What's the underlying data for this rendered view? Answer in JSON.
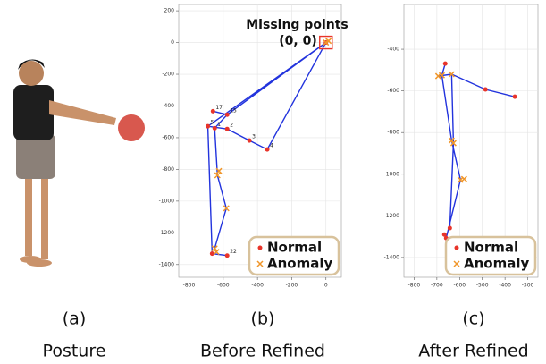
{
  "captions": [
    {
      "label": "(a)",
      "title": "Posture"
    },
    {
      "label": "(b)",
      "title": "Before Refined"
    },
    {
      "label": "(c)",
      "title": "After Refined"
    }
  ],
  "chart_data": [
    {
      "type": "scatter",
      "xlim": [
        -860,
        90
      ],
      "ylim": [
        -1480,
        240
      ],
      "xticks": [
        -800,
        -600,
        -400,
        -200,
        0
      ],
      "yticks": [
        200,
        0,
        -200,
        -400,
        -600,
        -800,
        -1000,
        -1200,
        -1400
      ],
      "grid": true,
      "legend": "lower right",
      "annotation": {
        "text": "Missing points",
        "point_label": "(0, 0)",
        "x": 0,
        "y": 0,
        "color": "#e8342a"
      },
      "skeleton": {
        "color": "#2233dd",
        "x": [
          0,
          -577,
          -650,
          null,
          0,
          -690,
          -577,
          -447,
          -343,
          0,
          null,
          -650,
          -634,
          -582,
          -650,
          null,
          -690,
          -665,
          -577,
          null,
          -660,
          -577
        ],
        "y": [
          0,
          -455,
          -540,
          null,
          0,
          -528,
          -545,
          -618,
          -674,
          0,
          null,
          -540,
          -837,
          -1045,
          -1298,
          null,
          -528,
          -1331,
          -1343,
          null,
          -433,
          -455
        ]
      },
      "series": [
        {
          "name": "Normal",
          "color": "#e8342a",
          "marker": "dot",
          "x": [
            0,
            -660,
            -577,
            -690,
            -650,
            -577,
            -447,
            -343,
            -665,
            -577
          ],
          "y": [
            0,
            -433,
            -455,
            -528,
            -540,
            -545,
            -618,
            -674,
            -1331,
            -1343
          ],
          "labels": [
            null,
            "17",
            "15",
            "5",
            "1",
            "2",
            "3",
            "4",
            null,
            "22"
          ]
        },
        {
          "name": "Anomaly",
          "color": "#f0962a",
          "marker": "x",
          "x": [
            0,
            15,
            -634,
            -625,
            -582,
            -650,
            -640
          ],
          "y": [
            0,
            10,
            -837,
            -810,
            -1045,
            -1298,
            -1320
          ]
        }
      ]
    },
    {
      "type": "scatter",
      "xlim": [
        -845,
        -255
      ],
      "ylim": [
        -1495,
        -185
      ],
      "xticks": [
        -800,
        -700,
        -600,
        -500,
        -400,
        -300
      ],
      "yticks": [
        -400,
        -600,
        -800,
        -1000,
        -1200,
        -1400
      ],
      "grid": true,
      "legend": "lower right",
      "skeleton": {
        "color": "#2233dd",
        "x": [
          -694,
          -635,
          -486,
          -357,
          null,
          -663,
          -678,
          -635,
          -596,
          -659,
          null,
          -635,
          -627,
          -643
        ],
        "y": [
          -529,
          -520,
          -593,
          -628,
          null,
          -469,
          -525,
          -838,
          -1027,
          -1307,
          null,
          -520,
          -851,
          -1259
        ]
      },
      "series": [
        {
          "name": "Normal",
          "color": "#e8342a",
          "marker": "dot",
          "x": [
            -663,
            -486,
            -357,
            -667,
            -659,
            -643
          ],
          "y": [
            -469,
            -593,
            -628,
            -1290,
            -1307,
            -1259
          ]
        },
        {
          "name": "Anomaly",
          "color": "#f0962a",
          "marker": "x",
          "x": [
            -694,
            -678,
            -635,
            -635,
            -627,
            -596,
            -580
          ],
          "y": [
            -529,
            -525,
            -520,
            -838,
            -851,
            -1027,
            -1023
          ]
        }
      ]
    }
  ]
}
